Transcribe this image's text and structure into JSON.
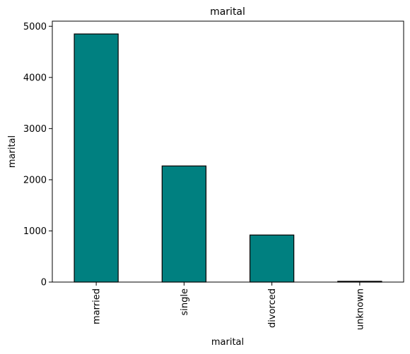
{
  "chart_data": {
    "type": "bar",
    "title": "marital",
    "xlabel": "marital",
    "ylabel": "marital",
    "categories": [
      "married",
      "single",
      "divorced",
      "unknown"
    ],
    "values": [
      4850,
      2270,
      920,
      15
    ],
    "ylim": [
      0,
      5100
    ],
    "yticks": [
      0,
      1000,
      2000,
      3000,
      4000,
      5000
    ],
    "ytick_labels": [
      "0",
      "1000",
      "2000",
      "3000",
      "4000",
      "5000"
    ],
    "grid": false,
    "legend": "none",
    "bar_color": "#008080",
    "edge_color": "#000000"
  }
}
